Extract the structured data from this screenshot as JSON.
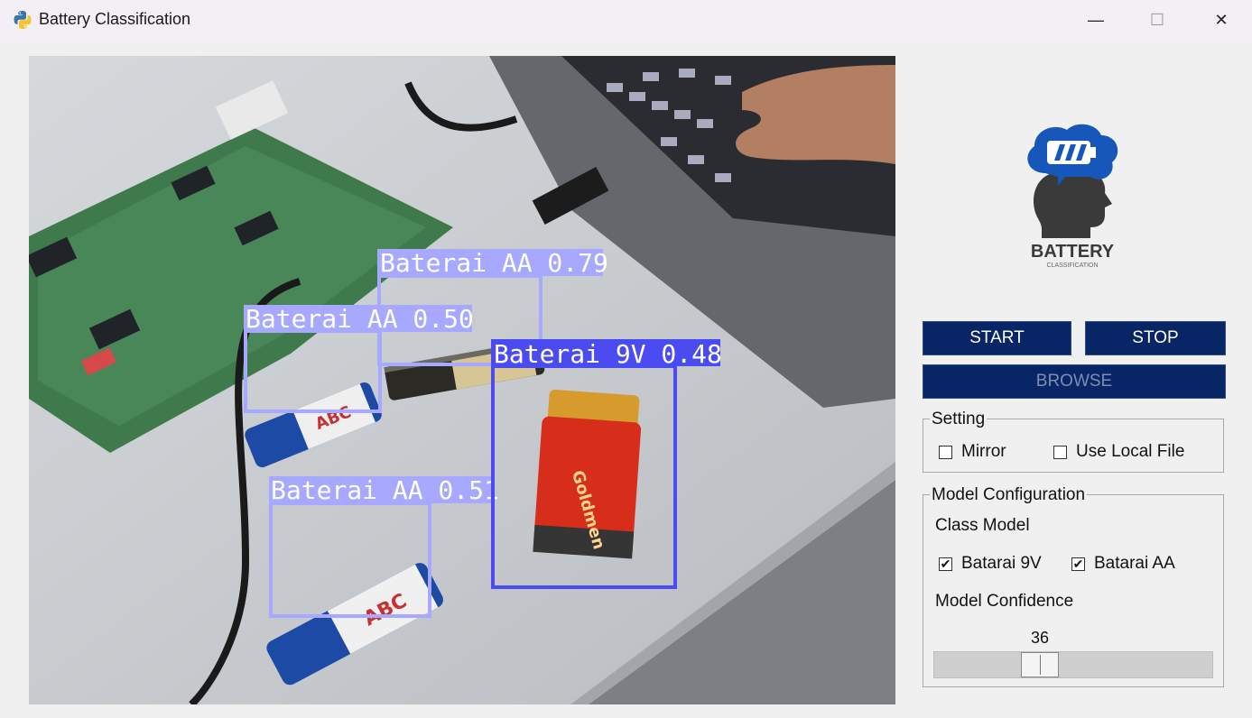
{
  "window": {
    "title": "Battery Classification",
    "minimize": "—",
    "maximize": "☐",
    "close": "✕"
  },
  "logo": {
    "title": "BATTERY",
    "subtitle": "CLASSIFICATION"
  },
  "detections": [
    {
      "label": "Baterai AA 0.79"
    },
    {
      "label": "Baterai AA 0.50"
    },
    {
      "label": "Baterai 9V 0.48"
    },
    {
      "label": "Baterai AA 0.51"
    }
  ],
  "controls": {
    "start": "START",
    "stop": "STOP",
    "browse": "BROWSE"
  },
  "setting": {
    "title": "Setting",
    "mirror": "Mirror",
    "mirror_checked": false,
    "local_file": "Use Local File",
    "local_file_checked": false
  },
  "model": {
    "title": "Model Configuration",
    "class_model": "Class Model",
    "class_9v": "Batarai 9V",
    "class_9v_checked": true,
    "class_aa": "Batarai AA",
    "class_aa_checked": true,
    "confidence_label": "Model Confidence",
    "confidence_value": "36"
  },
  "colors": {
    "button_bg": "#082566",
    "box_light": "#a6a9ff",
    "box_dark": "#4a4cf2"
  }
}
